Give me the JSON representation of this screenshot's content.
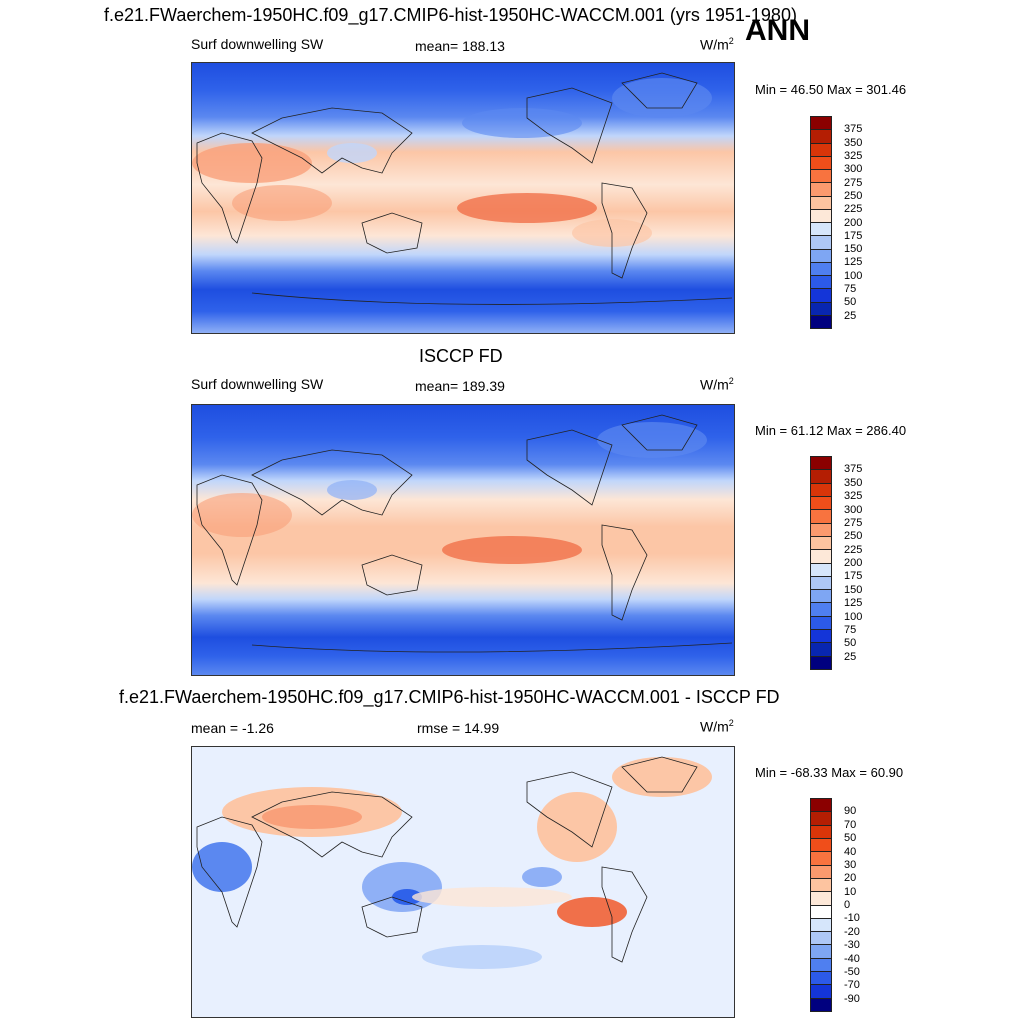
{
  "header": {
    "title": "f.e21.FWaerchem-1950HC.f09_g17.CMIP6-hist-1950HC-WACCM.001 (yrs 1951-1980)",
    "season": "ANN"
  },
  "panels": [
    {
      "left_label": "Surf downwelling SW",
      "center_label": "mean= 188.13",
      "unit": "W/m",
      "unit_sup": "2",
      "minmax": "Min =  46.50 Max = 301.46",
      "colorbar": {
        "labels": [
          "375",
          "350",
          "325",
          "300",
          "275",
          "250",
          "225",
          "200",
          "175",
          "150",
          "125",
          "100",
          "75",
          "50",
          "25"
        ],
        "colors": [
          "#8b0000",
          "#b41e03",
          "#d93509",
          "#f04e1a",
          "#f8733f",
          "#fb9a6e",
          "#fdc4a0",
          "#fde8d8",
          "#d6e6fb",
          "#aec8f6",
          "#7ea6f3",
          "#4f7ff0",
          "#2c5ae8",
          "#1435d8",
          "#0826b0",
          "#00007f"
        ]
      },
      "map": {
        "palette": [
          "#1e4ee0",
          "#2f62ea",
          "#5b88f0",
          "#8fb0f6",
          "#c0d6fb",
          "#e8f0fe",
          "#fde6d6",
          "#fcc6a6",
          "#f9a07a",
          "#f0704a"
        ]
      }
    },
    {
      "title": "ISCCP FD",
      "left_label": "Surf downwelling SW",
      "center_label": "mean= 189.39",
      "unit": "W/m",
      "unit_sup": "2",
      "minmax": "Min =  61.12 Max = 286.40",
      "colorbar": {
        "labels": [
          "375",
          "350",
          "325",
          "300",
          "275",
          "250",
          "225",
          "200",
          "175",
          "150",
          "125",
          "100",
          "75",
          "50",
          "25"
        ],
        "colors": [
          "#8b0000",
          "#b41e03",
          "#d93509",
          "#f04e1a",
          "#f8733f",
          "#fb9a6e",
          "#fdc4a0",
          "#fde8d8",
          "#d6e6fb",
          "#aec8f6",
          "#7ea6f3",
          "#4f7ff0",
          "#2c5ae8",
          "#1435d8",
          "#0826b0",
          "#00007f"
        ]
      }
    },
    {
      "title": "f.e21.FWaerchem-1950HC.f09_g17.CMIP6-hist-1950HC-WACCM.001 - ISCCP FD",
      "left_label": "mean =  -1.26",
      "center_label": "rmse =  14.99",
      "unit": "W/m",
      "unit_sup": "2",
      "minmax": "Min = -68.33 Max =  60.90",
      "colorbar": {
        "labels": [
          "90",
          "70",
          "50",
          "40",
          "30",
          "20",
          "10",
          "0",
          "-10",
          "-20",
          "-30",
          "-40",
          "-50",
          "-70",
          "-90"
        ],
        "colors": [
          "#8b0000",
          "#b41e03",
          "#d93509",
          "#f04e1a",
          "#f8733f",
          "#fb9a6e",
          "#fdc4a0",
          "#fde8d8",
          "#ffffff",
          "#d6e6fb",
          "#aec8f6",
          "#7ea6f3",
          "#4f7ff0",
          "#2c5ae8",
          "#1435d8",
          "#00007f"
        ]
      }
    }
  ]
}
